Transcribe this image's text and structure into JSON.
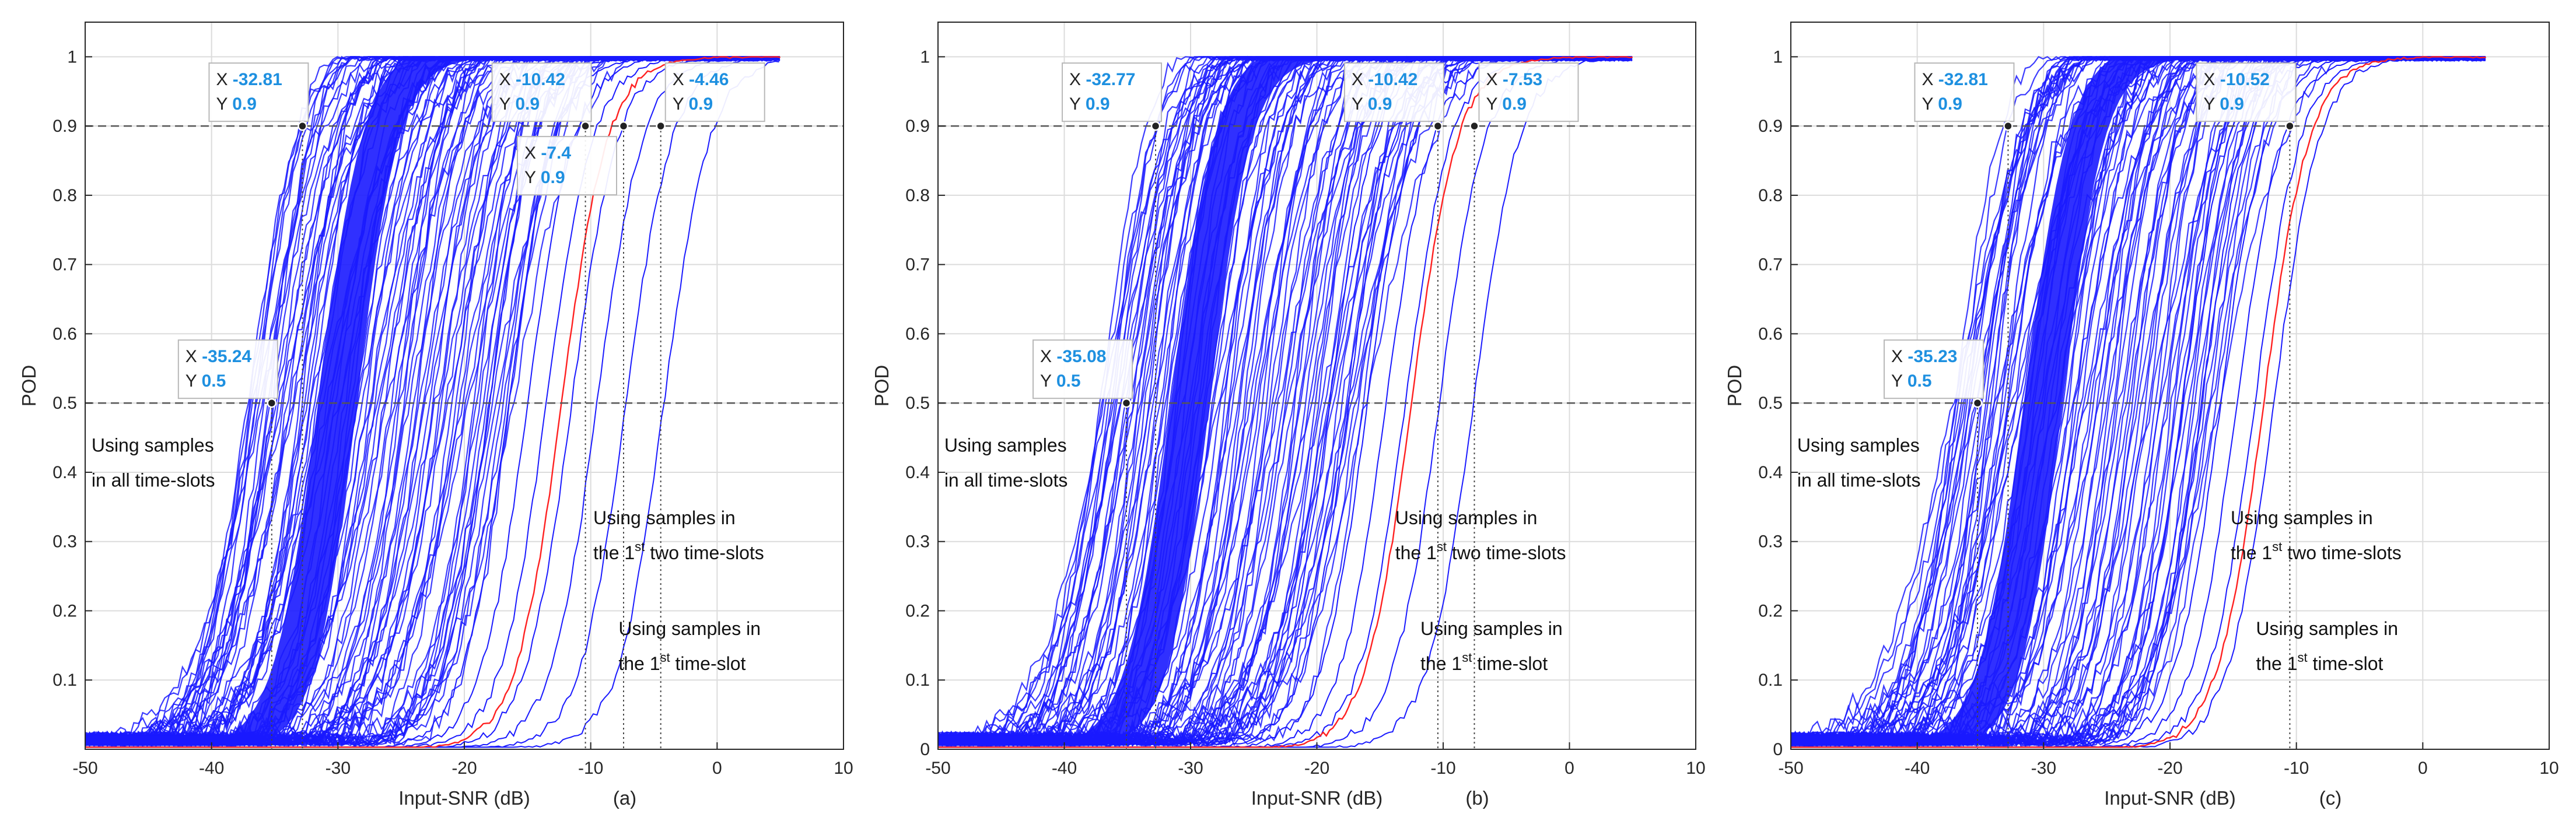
{
  "figure": {
    "panels": [
      {
        "id": "a",
        "caption": "(a)",
        "dtips": [
          {
            "x": -32.81,
            "y": 0.9,
            "box_side": "left"
          },
          {
            "x": -35.24,
            "y": 0.5,
            "box_side": "left"
          },
          {
            "x": -10.42,
            "y": 0.9,
            "box_side": "left"
          },
          {
            "x": -7.4,
            "y": 0.9,
            "box_side": "left-below"
          },
          {
            "x": -4.46,
            "y": 0.9,
            "box_side": "right"
          }
        ],
        "annotations": [
          {
            "lines": [
              "Using samples",
              "in all time-slots"
            ],
            "x": -49.5,
            "y": 0.43
          },
          {
            "lines": [
              "Using samples in",
              "the 1st two time-slots"
            ],
            "x": -9.8,
            "y": 0.325
          },
          {
            "lines": [
              "Using samples in",
              "the 1st time-slot"
            ],
            "x": -7.8,
            "y": 0.165
          }
        ],
        "curves": {
          "blue_band_from": -38,
          "blue_band_to": -20,
          "red_mid": -12.3,
          "red_steep": 0.55,
          "red_mid2": null
        }
      },
      {
        "id": "b",
        "caption": "(b)",
        "dtips": [
          {
            "x": -32.77,
            "y": 0.9,
            "box_side": "left"
          },
          {
            "x": -35.08,
            "y": 0.5,
            "box_side": "left"
          },
          {
            "x": -10.42,
            "y": 0.9,
            "box_side": "left"
          },
          {
            "x": -7.53,
            "y": 0.9,
            "box_side": "right"
          }
        ],
        "annotations": [
          {
            "lines": [
              "Using samples",
              "in all time-slots"
            ],
            "x": -49.5,
            "y": 0.43
          },
          {
            "lines": [
              "Using samples in",
              "the 1st two time-slots"
            ],
            "x": -13.8,
            "y": 0.325
          },
          {
            "lines": [
              "Using samples in",
              "the 1st time-slot"
            ],
            "x": -11.8,
            "y": 0.165
          }
        ],
        "curves": {
          "blue_band_from": -38,
          "blue_band_to": -20,
          "red_mid": -12.5,
          "red_steep": 0.55,
          "red_mid2": null
        }
      },
      {
        "id": "c",
        "caption": "(c)",
        "dtips": [
          {
            "x": -32.81,
            "y": 0.9,
            "box_side": "left"
          },
          {
            "x": -35.23,
            "y": 0.5,
            "box_side": "left"
          },
          {
            "x": -10.52,
            "y": 0.9,
            "box_side": "left"
          }
        ],
        "annotations": [
          {
            "lines": [
              "Using samples",
              "in all time-slots"
            ],
            "x": -49.5,
            "y": 0.43
          },
          {
            "lines": [
              "Using samples in",
              "the 1st two time-slots"
            ],
            "x": -15.2,
            "y": 0.325
          },
          {
            "lines": [
              "Using samples in",
              "the 1st time-slot"
            ],
            "x": -13.2,
            "y": 0.165
          }
        ],
        "curves": {
          "blue_band_from": -38,
          "blue_band_to": -20,
          "red_mid": -12.6,
          "red_steep": 0.55,
          "red_mid2": null
        }
      }
    ]
  },
  "chart_data": [
    {
      "type": "line",
      "title": "",
      "caption": "(a)",
      "xlabel": "Input-SNR (dB)",
      "ylabel": "POD",
      "xlim": [
        -50,
        10
      ],
      "ylim": [
        0,
        1.05
      ],
      "xticks": [
        -50,
        -40,
        -30,
        -20,
        -10,
        0,
        10
      ],
      "yticks": [
        0.1,
        0.2,
        0.3,
        0.4,
        0.5,
        0.6,
        0.7,
        0.8,
        0.9,
        1
      ],
      "reference_lines": [
        0.9,
        0.5
      ],
      "grid": true,
      "series": [
        {
          "name": "POD curves (blue family)",
          "color": "#1a1aff"
        },
        {
          "name": "Highlighted curve",
          "color": "#ff2020"
        }
      ]
    },
    {
      "type": "line",
      "title": "",
      "caption": "(b)",
      "xlabel": "Input-SNR (dB)",
      "ylabel": "POD",
      "xlim": [
        -50,
        10
      ],
      "ylim": [
        0,
        1.05
      ],
      "xticks": [
        -50,
        -40,
        -30,
        -20,
        -10,
        0,
        10
      ],
      "yticks": [
        0,
        0.1,
        0.2,
        0.3,
        0.4,
        0.5,
        0.6,
        0.7,
        0.8,
        0.9,
        1
      ],
      "reference_lines": [
        0.9,
        0.5
      ],
      "grid": true,
      "series": [
        {
          "name": "POD curves (blue family)",
          "color": "#1a1aff"
        },
        {
          "name": "Highlighted curve",
          "color": "#ff2020"
        }
      ]
    },
    {
      "type": "line",
      "title": "",
      "caption": "(c)",
      "xlabel": "Input-SNR (dB)",
      "ylabel": "POD",
      "xlim": [
        -50,
        10
      ],
      "ylim": [
        0,
        1.05
      ],
      "xticks": [
        -50,
        -40,
        -30,
        -20,
        -10,
        0,
        10
      ],
      "yticks": [
        0,
        0.1,
        0.2,
        0.3,
        0.4,
        0.5,
        0.6,
        0.7,
        0.8,
        0.9,
        1
      ],
      "reference_lines": [
        0.9,
        0.5
      ],
      "grid": true,
      "series": [
        {
          "name": "POD curves (blue family)",
          "color": "#1a1aff"
        },
        {
          "name": "Highlighted curve",
          "color": "#ff2020"
        }
      ]
    }
  ],
  "colors": {
    "blue": "#1a1aff",
    "red": "#ff2020",
    "tip_value": "#1e90e0",
    "grid": "#dcdcdc",
    "axis": "#262626",
    "dash": "#555555"
  }
}
